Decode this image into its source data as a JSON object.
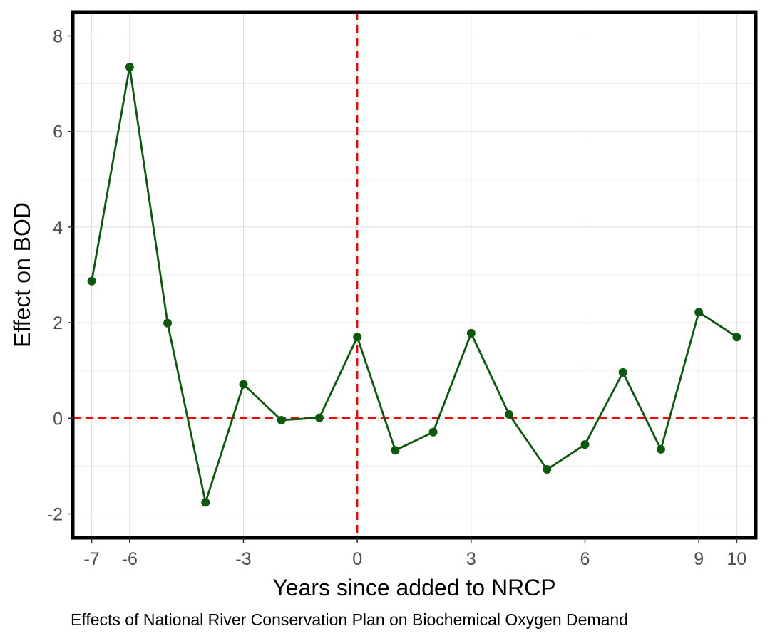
{
  "chart_data": {
    "type": "line",
    "title": "",
    "caption": "Effects of National River Conservation Plan on Biochemical Oxygen Demand",
    "xlabel": "Years since added to NRCP",
    "ylabel": "Effect on BOD",
    "xlim": [
      -7.5,
      10.5
    ],
    "ylim": [
      -2.5,
      8.5
    ],
    "x_ticks": [
      -7,
      -6,
      -3,
      0,
      3,
      6,
      9,
      10
    ],
    "x_tick_labels": [
      "-7",
      "-6",
      "-3",
      "0",
      "3",
      "6",
      "9",
      "10"
    ],
    "y_ticks": [
      -2,
      0,
      2,
      4,
      6,
      8
    ],
    "y_tick_labels": [
      "-2",
      "0",
      "2",
      "4",
      "6",
      "8"
    ],
    "grid": true,
    "reference_lines": [
      {
        "orientation": "vertical",
        "value": 0,
        "style": "dashed",
        "color": "#ff0000"
      },
      {
        "orientation": "horizontal",
        "value": 0,
        "style": "dashed",
        "color": "#ff0000"
      }
    ],
    "series": [
      {
        "color": "#0b5a0b",
        "x": [
          -7,
          -6,
          -5,
          -4,
          -3,
          -2,
          -1,
          0,
          1,
          2,
          3,
          4,
          5,
          6,
          7,
          8,
          9,
          10
        ],
        "y": [
          2.87,
          7.35,
          1.99,
          -1.76,
          0.71,
          -0.04,
          0.01,
          1.7,
          -0.67,
          -0.29,
          1.78,
          0.08,
          -1.07,
          -0.55,
          0.96,
          -0.65,
          2.22,
          1.7
        ]
      }
    ]
  }
}
